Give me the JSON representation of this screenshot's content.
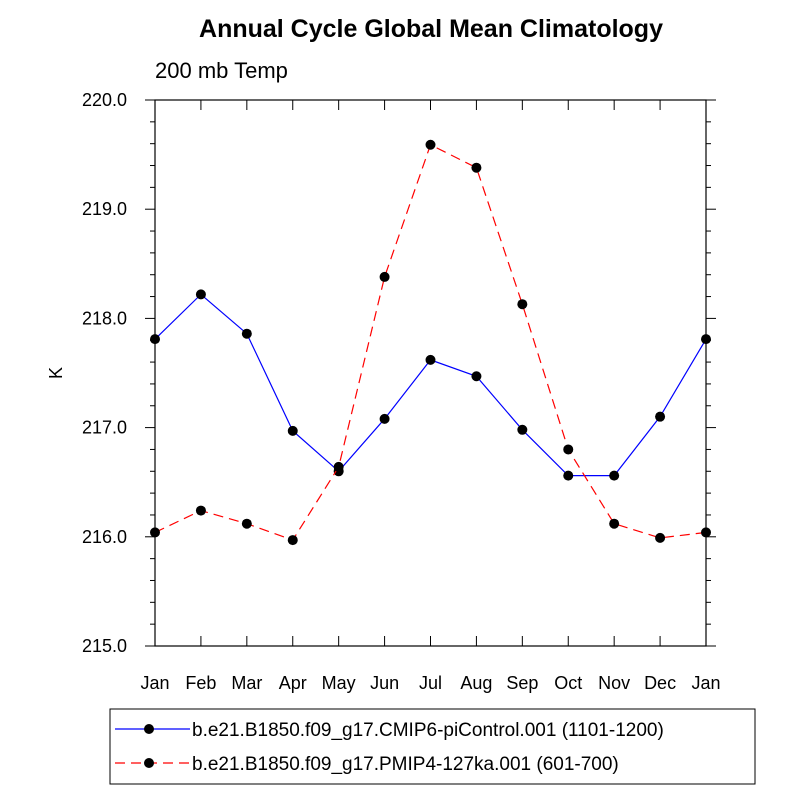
{
  "chart_data": {
    "type": "line",
    "title": "Annual Cycle Global Mean Climatology",
    "subtitle": "200 mb Temp",
    "xlabel": "",
    "ylabel": "K",
    "categories": [
      "Jan",
      "Feb",
      "Mar",
      "Apr",
      "May",
      "Jun",
      "Jul",
      "Aug",
      "Sep",
      "Oct",
      "Nov",
      "Dec",
      "Jan"
    ],
    "ylim": [
      215.0,
      220.0
    ],
    "yticks": [
      "215.0",
      "216.0",
      "217.0",
      "218.0",
      "219.0",
      "220.0"
    ],
    "legend_position": "bottom",
    "series": [
      {
        "name": "b.e21.B1850.f09_g17.CMIP6-piControl.001 (1101-1200)",
        "color": "#0000ff",
        "dash": "solid",
        "values": [
          217.81,
          218.22,
          217.86,
          216.97,
          216.6,
          217.08,
          217.62,
          217.47,
          216.98,
          216.56,
          216.56,
          217.1,
          217.81
        ]
      },
      {
        "name": "b.e21.B1850.f09_g17.PMIP4-127ka.001 (601-700)",
        "color": "#ff0000",
        "dash": "dashed",
        "values": [
          216.04,
          216.24,
          216.12,
          215.97,
          216.64,
          218.38,
          219.59,
          219.38,
          218.13,
          216.8,
          216.12,
          215.99,
          216.04
        ]
      }
    ]
  }
}
